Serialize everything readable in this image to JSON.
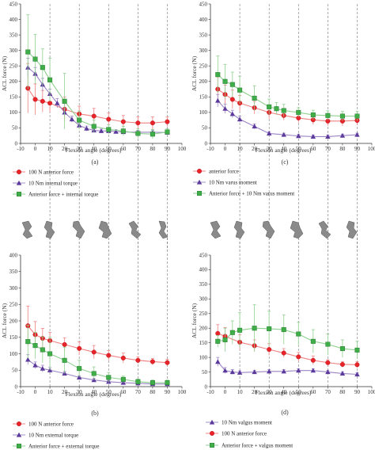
{
  "chart_data": [
    {
      "type": "line",
      "panel_label": "(a)",
      "xlabel": "Flexion angle (degrees)",
      "ylabel": "ACL force (N)",
      "xlim": [
        -10,
        100
      ],
      "ylim": [
        0,
        450
      ],
      "xticks": [
        -10,
        0,
        10,
        20,
        30,
        40,
        50,
        60,
        70,
        80,
        90,
        100
      ],
      "yticks": [
        0,
        50,
        100,
        150,
        200,
        250,
        300,
        350,
        400,
        450
      ],
      "dashed_x": [
        10,
        30,
        50,
        70,
        90
      ],
      "legend_items": [
        0,
        1,
        2
      ],
      "series": [
        {
          "name": "100 N anterior force",
          "marker": "circle",
          "color": "#e8232a",
          "line": "#f08080",
          "x": [
            -5,
            0,
            5,
            10,
            20,
            30,
            40,
            50,
            60,
            70,
            80,
            90
          ],
          "y": [
            178,
            142,
            136,
            130,
            110,
            95,
            88,
            78,
            70,
            66,
            66,
            70
          ],
          "err": [
            80,
            50,
            35,
            30,
            40,
            25,
            25,
            20,
            20,
            20,
            20,
            15
          ]
        },
        {
          "name": "10 Nm internal torque",
          "marker": "triangle",
          "color": "#5b3a9c",
          "line": "#9b84c4",
          "x": [
            -5,
            0,
            5,
            10,
            15,
            20,
            25,
            30,
            35,
            40,
            45,
            50,
            55,
            60,
            70,
            80,
            90
          ],
          "y": [
            245,
            225,
            190,
            160,
            130,
            100,
            78,
            58,
            48,
            42,
            40,
            40,
            38,
            37,
            36,
            36,
            35
          ],
          "err": [
            30,
            20,
            20,
            15,
            15,
            12,
            10,
            8,
            8,
            6,
            6,
            6,
            6,
            6,
            6,
            6,
            6
          ]
        },
        {
          "name": "Anterior force + internal torque",
          "marker": "square",
          "color": "#3fae49",
          "line": "#8fd08f",
          "x": [
            -5,
            0,
            5,
            10,
            20,
            30,
            40,
            50,
            60,
            70,
            80,
            90
          ],
          "y": [
            295,
            272,
            245,
            205,
            136,
            75,
            55,
            45,
            40,
            32,
            30,
            37
          ],
          "err": [
            120,
            80,
            60,
            70,
            90,
            30,
            20,
            15,
            15,
            15,
            15,
            10
          ]
        }
      ]
    },
    {
      "type": "line",
      "panel_label": "(c)",
      "xlabel": "Flexion angle (degrees)",
      "ylabel": "ACL force (N)",
      "xlim": [
        -10,
        100
      ],
      "ylim": [
        0,
        450
      ],
      "xticks": [
        -10,
        0,
        10,
        20,
        30,
        40,
        50,
        60,
        70,
        80,
        90,
        100
      ],
      "yticks": [
        0,
        50,
        100,
        150,
        200,
        250,
        300,
        350,
        400,
        450
      ],
      "dashed_x": [
        10,
        30,
        50,
        70,
        90
      ],
      "legend_items": [
        3,
        4,
        5
      ],
      "series": [
        {
          "name": "anterior force",
          "marker": "circle",
          "color": "#e8232a",
          "line": "#f08080",
          "x": [
            -5,
            0,
            5,
            10,
            20,
            30,
            40,
            50,
            60,
            70,
            80,
            90
          ],
          "y": [
            175,
            158,
            142,
            130,
            115,
            100,
            90,
            82,
            76,
            72,
            72,
            74
          ],
          "err": [
            40,
            30,
            30,
            25,
            20,
            20,
            15,
            15,
            15,
            15,
            15,
            15
          ]
        },
        {
          "name": "10 Nm varus moment",
          "marker": "triangle",
          "color": "#5b3a9c",
          "line": "#9b84c4",
          "x": [
            -5,
            0,
            5,
            10,
            20,
            30,
            40,
            50,
            60,
            70,
            80,
            90
          ],
          "y": [
            138,
            112,
            95,
            78,
            55,
            32,
            28,
            24,
            22,
            22,
            25,
            28
          ],
          "err": [
            20,
            15,
            12,
            10,
            8,
            6,
            5,
            5,
            5,
            5,
            5,
            5
          ]
        },
        {
          "name": "Anterior force + 10 Nm varus moment",
          "marker": "square",
          "color": "#3fae49",
          "line": "#8fd08f",
          "x": [
            -5,
            0,
            5,
            10,
            20,
            30,
            35,
            40,
            50,
            60,
            70,
            80,
            90
          ],
          "y": [
            222,
            200,
            190,
            172,
            146,
            118,
            112,
            106,
            100,
            92,
            90,
            88,
            88
          ],
          "err": [
            60,
            55,
            40,
            45,
            40,
            25,
            20,
            20,
            15,
            15,
            15,
            15,
            15
          ]
        }
      ]
    },
    {
      "type": "line",
      "panel_label": "(b)",
      "xlabel": "Flexion angle (degrees)",
      "ylabel": "ACL force (N)",
      "xlim": [
        -10,
        100
      ],
      "ylim": [
        0,
        400
      ],
      "xticks": [
        -10,
        0,
        10,
        20,
        30,
        40,
        50,
        60,
        70,
        80,
        90,
        100
      ],
      "yticks": [
        0,
        50,
        100,
        150,
        200,
        250,
        300,
        350,
        400
      ],
      "dashed_x": [
        10,
        30,
        50,
        70,
        90
      ],
      "legend_items": [
        6,
        7,
        8
      ],
      "series": [
        {
          "name": "100 N anterior force",
          "marker": "circle",
          "color": "#e8232a",
          "line": "#f08080",
          "x": [
            -5,
            0,
            5,
            10,
            20,
            30,
            40,
            50,
            60,
            70,
            80,
            90
          ],
          "y": [
            185,
            158,
            147,
            140,
            128,
            116,
            105,
            95,
            87,
            80,
            76,
            73
          ],
          "err": [
            60,
            40,
            30,
            25,
            20,
            20,
            20,
            15,
            15,
            10,
            10,
            10
          ]
        },
        {
          "name": "10 Nm external torque",
          "marker": "triangle",
          "color": "#5b3a9c",
          "line": "#9b84c4",
          "x": [
            -5,
            0,
            5,
            10,
            20,
            30,
            40,
            50,
            60,
            70,
            80,
            90
          ],
          "y": [
            82,
            65,
            55,
            50,
            40,
            28,
            20,
            15,
            12,
            10,
            8,
            8
          ],
          "err": [
            15,
            10,
            10,
            8,
            6,
            5,
            5,
            4,
            4,
            4,
            4,
            4
          ]
        },
        {
          "name": "Anterior force + external torque",
          "marker": "square",
          "color": "#3fae49",
          "line": "#8fd08f",
          "x": [
            -5,
            0,
            5,
            10,
            20,
            30,
            40,
            50,
            60,
            70,
            80,
            90
          ],
          "y": [
            137,
            125,
            112,
            100,
            80,
            55,
            40,
            28,
            22,
            15,
            12,
            12
          ],
          "err": [
            50,
            40,
            40,
            50,
            40,
            25,
            20,
            15,
            10,
            8,
            8,
            8
          ]
        }
      ]
    },
    {
      "type": "line",
      "panel_label": "(d)",
      "xlabel": "Flexion angle (degrees)",
      "ylabel": "ACL force (N)",
      "xlim": [
        -10,
        100
      ],
      "ylim": [
        0,
        450
      ],
      "xticks": [
        -10,
        0,
        10,
        20,
        30,
        40,
        50,
        60,
        70,
        80,
        90,
        100
      ],
      "yticks": [
        0,
        50,
        100,
        150,
        200,
        250,
        300,
        350,
        400,
        450
      ],
      "dashed_x": [
        10,
        30,
        50,
        70,
        90
      ],
      "legend_items": [
        9,
        10,
        11
      ],
      "series": [
        {
          "name": "100 N anterior force",
          "marker": "circle",
          "color": "#e8232a",
          "line": "#f08080",
          "x": [
            -5,
            0,
            10,
            20,
            30,
            40,
            50,
            60,
            70,
            80,
            90
          ],
          "y": [
            182,
            172,
            152,
            140,
            127,
            115,
            102,
            90,
            82,
            76,
            75
          ],
          "err": [
            30,
            30,
            25,
            20,
            20,
            15,
            15,
            15,
            10,
            10,
            10
          ]
        },
        {
          "name": "10 Nm valgus moment",
          "marker": "triangle",
          "color": "#5b3a9c",
          "line": "#9b84c4",
          "x": [
            -5,
            0,
            5,
            10,
            20,
            30,
            40,
            50,
            60,
            70,
            80,
            90
          ],
          "y": [
            85,
            55,
            50,
            48,
            50,
            52,
            52,
            55,
            55,
            50,
            45,
            42
          ],
          "err": [
            15,
            10,
            8,
            6,
            6,
            6,
            6,
            6,
            6,
            6,
            6,
            6
          ]
        },
        {
          "name": "Anterior force + valgus moment",
          "marker": "square",
          "color": "#3fae49",
          "line": "#8fd08f",
          "x": [
            -5,
            0,
            5,
            10,
            20,
            30,
            40,
            50,
            60,
            70,
            80,
            90
          ],
          "y": [
            155,
            160,
            185,
            193,
            200,
            198,
            195,
            180,
            155,
            145,
            130,
            125
          ],
          "err": [
            20,
            40,
            40,
            60,
            80,
            60,
            50,
            40,
            40,
            35,
            30,
            30
          ]
        }
      ]
    }
  ],
  "legend": [
    {
      "text": "100 N anterior force",
      "marker": "circle",
      "color": "#e8232a"
    },
    {
      "text": "10 Nm internal torque",
      "marker": "triangle",
      "color": "#5b3a9c"
    },
    {
      "text": "Anterior force + internal torque",
      "marker": "square",
      "color": "#3fae49"
    },
    {
      "text": "anterior force",
      "marker": "circle",
      "color": "#e8232a"
    },
    {
      "text": "10 Nm varus moment",
      "marker": "triangle",
      "color": "#5b3a9c"
    },
    {
      "text": "Anterior force + 10 Nm varus moment",
      "marker": "square",
      "color": "#3fae49"
    },
    {
      "text": "100 N anterior force",
      "marker": "circle",
      "color": "#e8232a"
    },
    {
      "text": "10 Nm external torque",
      "marker": "triangle",
      "color": "#5b3a9c"
    },
    {
      "text": "Anterior force + external torque",
      "marker": "square",
      "color": "#3fae49"
    },
    {
      "text": "10 Nm valgus moment",
      "marker": "triangle",
      "color": "#5b3a9c"
    },
    {
      "text": "100 N anterior force",
      "marker": "circle",
      "color": "#e8232a"
    },
    {
      "text": "Anterior force + valgus moment",
      "marker": "square",
      "color": "#3fae49"
    }
  ],
  "knee_icons": [
    "knee-pose-icon",
    "knee-pose-icon",
    "knee-pose-icon",
    "knee-pose-icon",
    "knee-pose-icon",
    "knee-pose-icon",
    "knee-pose-icon",
    "knee-pose-icon",
    "knee-pose-icon",
    "knee-pose-icon"
  ],
  "colors": {
    "axis": "#333333",
    "dashed": "#777777",
    "knee_fill": "#8a8a8a"
  }
}
